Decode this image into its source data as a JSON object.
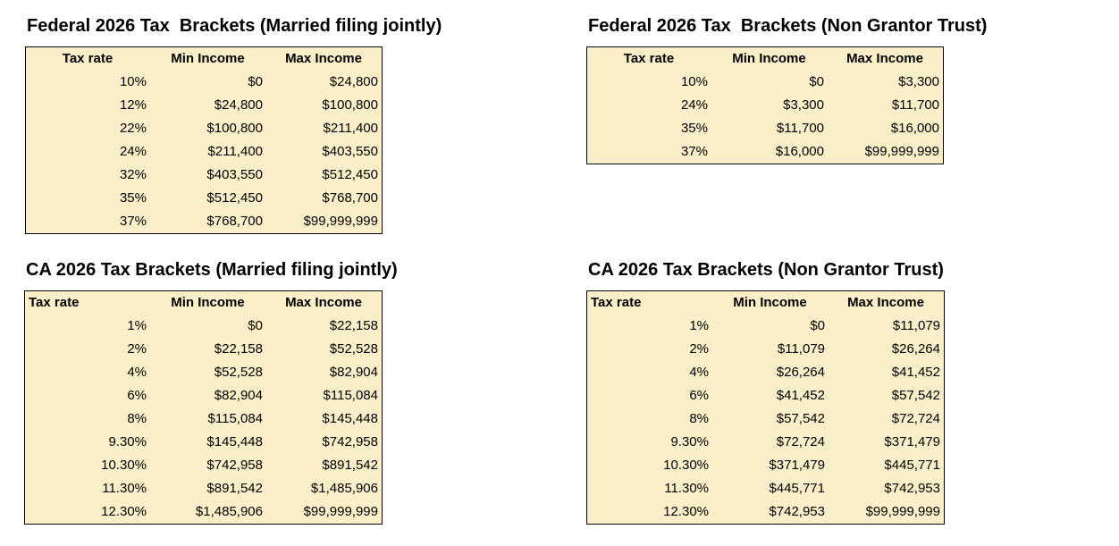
{
  "styles": {
    "table_background": "#FAEFC9",
    "table_border": "#000000",
    "text_color": "#000000",
    "page_background": "#FFFFFF"
  },
  "chart_data": [
    {
      "type": "table",
      "title": "Federal 2026 Tax  Brackets (Married filing jointly)",
      "columns": [
        "Tax rate",
        "Min Income",
        "Max Income"
      ],
      "rows": [
        [
          "10%",
          "$0",
          "$24,800"
        ],
        [
          "12%",
          "$24,800",
          "$100,800"
        ],
        [
          "22%",
          "$100,800",
          "$211,400"
        ],
        [
          "24%",
          "$211,400",
          "$403,550"
        ],
        [
          "32%",
          "$403,550",
          "$512,450"
        ],
        [
          "35%",
          "$512,450",
          "$768,700"
        ],
        [
          "37%",
          "$768,700",
          "$99,999,999"
        ]
      ]
    },
    {
      "type": "table",
      "title": "Federal 2026 Tax  Brackets (Non Grantor Trust)",
      "columns": [
        "Tax rate",
        "Min Income",
        "Max Income"
      ],
      "rows": [
        [
          "10%",
          "$0",
          "$3,300"
        ],
        [
          "24%",
          "$3,300",
          "$11,700"
        ],
        [
          "35%",
          "$11,700",
          "$16,000"
        ],
        [
          "37%",
          "$16,000",
          "$99,999,999"
        ]
      ]
    },
    {
      "type": "table",
      "title": "CA 2026 Tax Brackets (Married filing jointly)",
      "columns": [
        "Tax rate",
        "Min Income",
        "Max Income"
      ],
      "rows": [
        [
          "1%",
          "$0",
          "$22,158"
        ],
        [
          "2%",
          "$22,158",
          "$52,528"
        ],
        [
          "4%",
          "$52,528",
          "$82,904"
        ],
        [
          "6%",
          "$82,904",
          "$115,084"
        ],
        [
          "8%",
          "$115,084",
          "$145,448"
        ],
        [
          "9.30%",
          "$145,448",
          "$742,958"
        ],
        [
          "10.30%",
          "$742,958",
          "$891,542"
        ],
        [
          "11.30%",
          "$891,542",
          "$1,485,906"
        ],
        [
          "12.30%",
          "$1,485,906",
          "$99,999,999"
        ]
      ]
    },
    {
      "type": "table",
      "title": "CA 2026 Tax Brackets (Non Grantor Trust)",
      "columns": [
        "Tax rate",
        "Min Income",
        "Max Income"
      ],
      "rows": [
        [
          "1%",
          "$0",
          "$11,079"
        ],
        [
          "2%",
          "$11,079",
          "$26,264"
        ],
        [
          "4%",
          "$26,264",
          "$41,452"
        ],
        [
          "6%",
          "$41,452",
          "$57,542"
        ],
        [
          "8%",
          "$57,542",
          "$72,724"
        ],
        [
          "9.30%",
          "$72,724",
          "$371,479"
        ],
        [
          "10.30%",
          "$371,479",
          "$445,771"
        ],
        [
          "11.30%",
          "$445,771",
          "$742,953"
        ],
        [
          "12.30%",
          "$742,953",
          "$99,999,999"
        ]
      ]
    }
  ]
}
